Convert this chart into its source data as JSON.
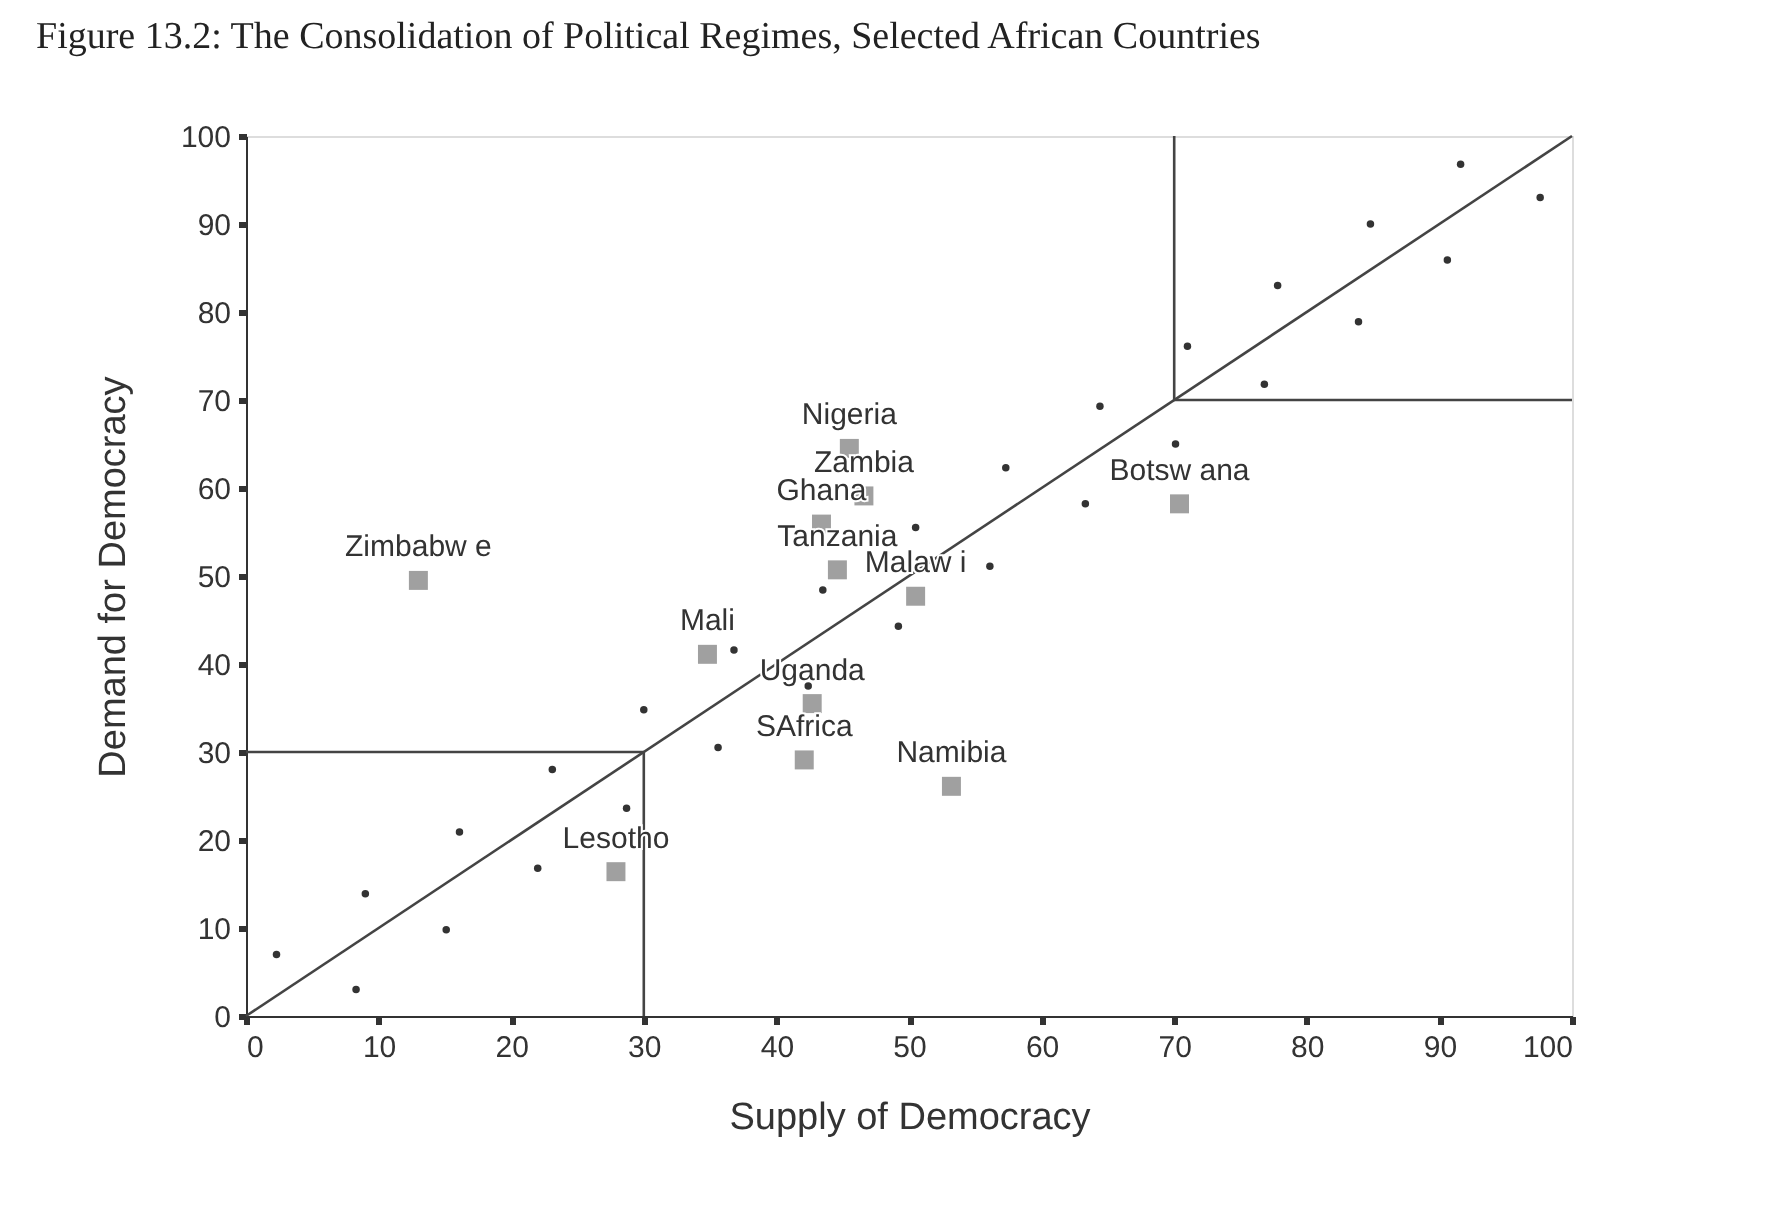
{
  "chart_data": {
    "type": "scatter",
    "title": "Figure 13.2:  The Consolidation of Political Regimes, Selected African Countries",
    "xlabel": "Supply of Democracy",
    "ylabel": "Demand for Democracy",
    "xlim": [
      0,
      100
    ],
    "ylim": [
      0,
      100
    ],
    "xticks": [
      0,
      10,
      20,
      30,
      40,
      50,
      60,
      70,
      80,
      90,
      100
    ],
    "yticks": [
      0,
      10,
      20,
      30,
      40,
      50,
      60,
      70,
      80,
      90,
      100
    ],
    "grid": false,
    "series": [
      {
        "type": "line",
        "color": "#444444",
        "marker": "none",
        "line_style": "solid",
        "x": [
          0,
          100
        ],
        "values": [
          0,
          100
        ]
      },
      {
        "type": "line",
        "color": "#444444",
        "marker": "none",
        "line_style": "solid",
        "x": [
          0,
          30,
          30
        ],
        "values": [
          30,
          30,
          0
        ]
      },
      {
        "type": "line",
        "color": "#444444",
        "marker": "none",
        "line_style": "solid",
        "x": [
          70,
          70,
          100
        ],
        "values": [
          100,
          70,
          70
        ]
      },
      {
        "color": "#333333",
        "marker": "circle",
        "x": [
          2.3,
          8.3,
          9.0,
          15.1,
          16.1,
          22.0,
          23.1,
          28.7,
          30.0,
          35.6,
          36.8,
          42.4,
          43.5,
          49.2,
          50.5,
          56.1,
          57.3,
          63.3,
          64.4,
          70.1,
          71.0,
          76.8,
          77.8,
          83.9,
          84.8,
          90.6,
          91.6,
          97.6
        ],
        "values": [
          7.0,
          3.0,
          13.9,
          9.8,
          20.9,
          16.8,
          28.0,
          23.6,
          34.8,
          30.5,
          41.6,
          37.5,
          48.4,
          44.3,
          55.5,
          51.1,
          62.3,
          58.2,
          69.3,
          65.0,
          76.1,
          71.8,
          83.0,
          78.9,
          90.0,
          85.9,
          96.8,
          93.0
        ]
      },
      {
        "color": "#a0a0a0",
        "marker": "square",
        "x": [
          13.0,
          45.5,
          46.6,
          43.4,
          44.6,
          50.5,
          34.8,
          42.7,
          42.1,
          53.2,
          27.9,
          70.4
        ],
        "values": [
          49.5,
          64.5,
          59.1,
          55.9,
          50.7,
          47.7,
          41.1,
          35.5,
          29.1,
          26.1,
          16.4,
          58.2
        ],
        "value_labels": [
          "Zimbabw e",
          "Nigeria",
          "Zambia",
          "Ghana",
          "Tanzania",
          "Malaw i",
          "Mali",
          "Uganda",
          "SAfrica",
          "Namibia",
          "Lesotho",
          "Botsw ana"
        ]
      }
    ]
  }
}
